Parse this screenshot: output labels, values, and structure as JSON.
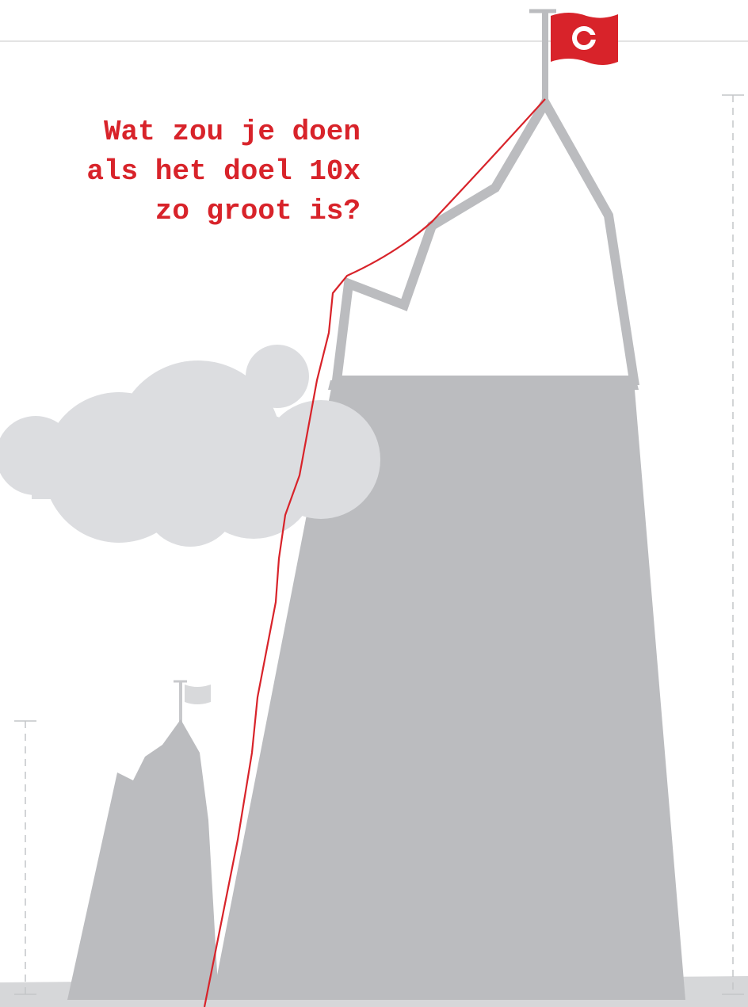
{
  "headline": {
    "lines": [
      "Wat zou je doen",
      "als het doel 10x",
      "zo groot is?"
    ]
  }
}
